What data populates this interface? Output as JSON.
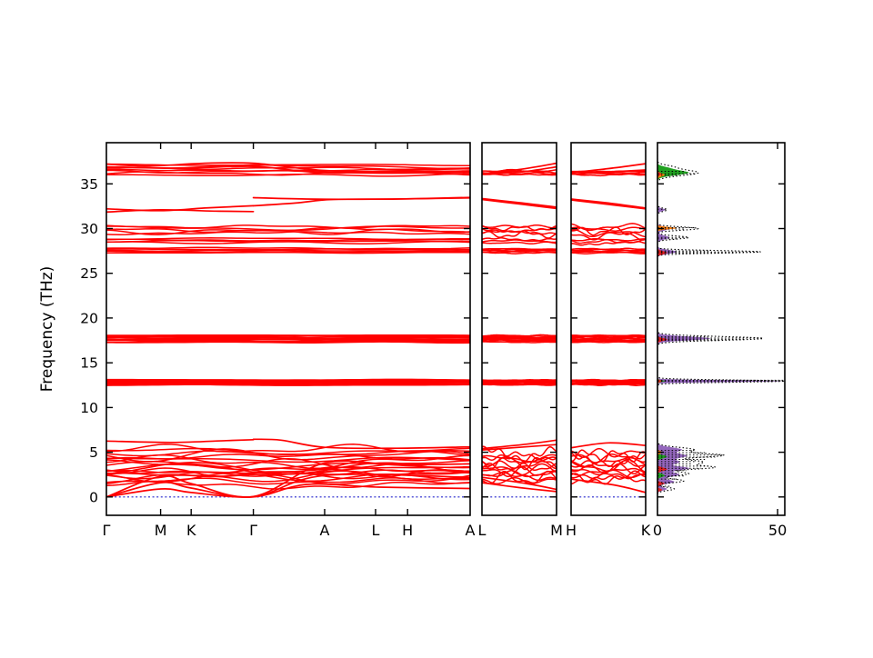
{
  "figure": {
    "ylabel": "Frequency (THz)",
    "ylim": [
      -2.05,
      39.6
    ],
    "yticks": [
      0,
      5,
      10,
      15,
      20,
      25,
      30,
      35
    ],
    "colors": {
      "band": "#ff0000",
      "zero_line": "#2222cc",
      "axis": "#000000",
      "background": "#ffffff"
    }
  },
  "chart_data": {
    "type": "line",
    "title": "",
    "ylabel": "Frequency (THz)",
    "yticks": [
      0,
      5,
      10,
      15,
      20,
      25,
      30,
      35
    ],
    "band_panels": [
      {
        "name": "band-panel-main",
        "kticks": [
          {
            "label": "Γ",
            "t": 0
          },
          {
            "label": "M",
            "t": 0.149
          },
          {
            "label": "K",
            "t": 0.233
          },
          {
            "label": "Γ",
            "t": 0.404
          },
          {
            "label": "A",
            "t": 0.6
          },
          {
            "label": "L",
            "t": 0.74
          },
          {
            "label": "H",
            "t": 0.828
          },
          {
            "label": "A",
            "t": 1
          }
        ],
        "clusters": [
          {
            "y": 36.55,
            "spread": 1.15,
            "n": 7,
            "wiggle": 0.2
          },
          {
            "y": 29.85,
            "spread": 0.75,
            "n": 5,
            "wiggle": 0.25
          },
          {
            "y": 28.65,
            "spread": 0.45,
            "n": 4,
            "wiggle": 0.12
          },
          {
            "y": 27.55,
            "spread": 0.5,
            "n": 5,
            "wiggle": 0.07
          },
          {
            "y": 17.68,
            "spread": 0.8,
            "n": 11,
            "wiggle": 0.06
          },
          {
            "y": 12.8,
            "spread": 0.6,
            "n": 10,
            "wiggle": 0.05
          },
          {
            "y": 3.7,
            "spread": 3.3,
            "n": 15,
            "wiggle": 0.55
          },
          {
            "y": 2.2,
            "spread": 1.8,
            "n": 5,
            "wiggle": 0.45
          }
        ],
        "lines": [
          [
            [
              0,
              0
            ],
            [
              0.149,
              2.3
            ],
            [
              0.233,
              1.5
            ],
            [
              0.404,
              0.05
            ],
            [
              0.6,
              3.8
            ],
            [
              0.8,
              3.6
            ],
            [
              1,
              3.7
            ]
          ],
          [
            [
              0,
              0
            ],
            [
              0.149,
              1.6
            ],
            [
              0.233,
              1.0
            ],
            [
              0.404,
              0.02
            ],
            [
              0.6,
              2.4
            ],
            [
              1,
              2.2
            ]
          ],
          [
            [
              0,
              0
            ],
            [
              0.149,
              0.9
            ],
            [
              0.233,
              0.5
            ],
            [
              0.404,
              0
            ],
            [
              0.55,
              1.4
            ],
            [
              0.75,
              1.1
            ],
            [
              1,
              0.95
            ]
          ],
          [
            [
              0.404,
              6.45
            ],
            [
              0.48,
              6.35
            ],
            [
              0.6,
              5.55
            ],
            [
              0.8,
              5.45
            ],
            [
              1,
              5.6
            ]
          ],
          [
            [
              0,
              6.25
            ],
            [
              0.18,
              6.1
            ],
            [
              0.33,
              6.3
            ],
            [
              0.404,
              6.4
            ]
          ],
          [
            [
              0,
              32.2
            ],
            [
              0.15,
              32.0
            ],
            [
              0.27,
              32.3
            ],
            [
              0.404,
              32.55
            ]
          ],
          [
            [
              0,
              31.85
            ],
            [
              0.15,
              32.1
            ],
            [
              0.3,
              31.95
            ],
            [
              0.404,
              31.9
            ]
          ],
          [
            [
              0.404,
              33.45
            ],
            [
              0.55,
              33.3
            ],
            [
              0.74,
              33.28
            ],
            [
              1,
              33.42
            ]
          ],
          [
            [
              0.404,
              32.55
            ],
            [
              0.52,
              32.85
            ],
            [
              0.62,
              33.25
            ],
            [
              0.8,
              33.3
            ],
            [
              1,
              33.48
            ]
          ],
          [
            [
              0,
              37.2
            ],
            [
              0.12,
              37.0
            ],
            [
              0.27,
              37.3
            ],
            [
              0.404,
              37.3
            ],
            [
              0.52,
              36.8
            ],
            [
              0.62,
              36.45
            ],
            [
              0.8,
              36.35
            ],
            [
              1,
              36.45
            ]
          ],
          [
            [
              0,
              36.9
            ],
            [
              0.2,
              36.75
            ],
            [
              0.404,
              36.95
            ],
            [
              0.55,
              36.4
            ],
            [
              0.75,
              36.2
            ],
            [
              1,
              36.3
            ]
          ]
        ]
      },
      {
        "name": "band-panel-l-m",
        "kticks": [
          {
            "label": "L",
            "t": 0
          },
          {
            "label": "M",
            "t": 1
          }
        ],
        "clusters": [
          {
            "y": 36.25,
            "spread": 0.45,
            "n": 4,
            "wiggle": 0.1
          },
          {
            "y": 29.8,
            "spread": 0.9,
            "n": 5,
            "wiggle": 0.3
          },
          {
            "y": 28.6,
            "spread": 0.4,
            "n": 3,
            "wiggle": 0.15
          },
          {
            "y": 27.5,
            "spread": 0.45,
            "n": 5,
            "wiggle": 0.06
          },
          {
            "y": 17.68,
            "spread": 0.75,
            "n": 9,
            "wiggle": 0.06
          },
          {
            "y": 12.8,
            "spread": 0.55,
            "n": 9,
            "wiggle": 0.05
          },
          {
            "y": 3.3,
            "spread": 3.0,
            "n": 13,
            "wiggle": 0.6
          }
        ],
        "lines": [
          [
            [
              0,
              36.15
            ],
            [
              0.5,
              36.6
            ],
            [
              1,
              37.3
            ]
          ],
          [
            [
              0,
              36.05
            ],
            [
              0.5,
              36.3
            ],
            [
              1,
              36.9
            ]
          ],
          [
            [
              0,
              33.35
            ],
            [
              0.5,
              32.9
            ],
            [
              1,
              32.4
            ]
          ],
          [
            [
              0,
              33.25
            ],
            [
              0.5,
              32.75
            ],
            [
              1,
              32.25
            ]
          ],
          [
            [
              0,
              5.4
            ],
            [
              0.6,
              5.9
            ],
            [
              1,
              6.35
            ]
          ],
          [
            [
              0,
              5.25
            ],
            [
              1,
              5.85
            ]
          ],
          [
            [
              0,
              1.6
            ],
            [
              0.5,
              1.05
            ],
            [
              1,
              0.6
            ]
          ],
          [
            [
              0,
              2.2
            ],
            [
              0.6,
              1.5
            ],
            [
              1,
              0.85
            ]
          ]
        ]
      },
      {
        "name": "band-panel-h-k",
        "kticks": [
          {
            "label": "H",
            "t": 0
          },
          {
            "label": "K",
            "t": 1
          }
        ],
        "clusters": [
          {
            "y": 36.2,
            "spread": 0.4,
            "n": 4,
            "wiggle": 0.08
          },
          {
            "y": 29.7,
            "spread": 0.95,
            "n": 5,
            "wiggle": 0.35
          },
          {
            "y": 28.55,
            "spread": 0.4,
            "n": 3,
            "wiggle": 0.15
          },
          {
            "y": 27.5,
            "spread": 0.45,
            "n": 5,
            "wiggle": 0.06
          },
          {
            "y": 17.68,
            "spread": 0.75,
            "n": 9,
            "wiggle": 0.06
          },
          {
            "y": 12.8,
            "spread": 0.55,
            "n": 9,
            "wiggle": 0.05
          },
          {
            "y": 3.4,
            "spread": 3.0,
            "n": 13,
            "wiggle": 0.6
          }
        ],
        "lines": [
          [
            [
              0,
              36.25
            ],
            [
              0.5,
              36.7
            ],
            [
              1,
              37.25
            ]
          ],
          [
            [
              0,
              36.1
            ],
            [
              1,
              36.55
            ]
          ],
          [
            [
              0,
              33.3
            ],
            [
              0.5,
              32.85
            ],
            [
              1,
              32.3
            ]
          ],
          [
            [
              0,
              33.2
            ],
            [
              0.6,
              32.6
            ],
            [
              1,
              32.2
            ]
          ],
          [
            [
              0,
              5.5
            ],
            [
              0.5,
              6.05
            ],
            [
              1,
              5.75
            ]
          ],
          [
            [
              0,
              2.0
            ],
            [
              0.6,
              1.3
            ],
            [
              1,
              0.5
            ]
          ]
        ]
      }
    ],
    "dos_panel": {
      "name": "dos-panel",
      "xlim": [
        0,
        53
      ],
      "xticks": [
        {
          "label": "0",
          "v": 0
        },
        {
          "label": "50",
          "v": 50
        }
      ],
      "series": [
        {
          "name": "dos-purple",
          "color": "#9467bd",
          "peaks": [
            [
              36.2,
              2,
              0.3
            ],
            [
              32.1,
              3.2,
              0.22
            ],
            [
              30.0,
              5,
              0.3
            ],
            [
              29.0,
              5,
              0.3
            ],
            [
              27.4,
              8,
              0.3
            ],
            [
              17.72,
              22,
              0.3
            ],
            [
              12.95,
              52,
              0.14
            ],
            [
              5.3,
              10,
              0.35
            ],
            [
              4.6,
              12,
              0.35
            ],
            [
              3.9,
              9,
              0.35
            ],
            [
              3.2,
              13,
              0.3
            ],
            [
              2.5,
              9,
              0.35
            ],
            [
              1.7,
              7,
              0.3
            ],
            [
              0.9,
              4,
              0.25
            ]
          ]
        },
        {
          "name": "dos-green",
          "color": "#21a121",
          "peaks": [
            [
              36.25,
              13,
              0.4
            ],
            [
              36.8,
              3,
              0.25
            ],
            [
              12.95,
              3,
              0.15
            ],
            [
              4.5,
              4,
              0.25
            ],
            [
              2.4,
              3,
              0.25
            ]
          ]
        },
        {
          "name": "dos-orange",
          "color": "#ff7f0e",
          "peaks": [
            [
              36.0,
              3,
              0.25
            ],
            [
              30.05,
              8,
              0.18
            ],
            [
              12.95,
              2,
              0.15
            ],
            [
              5.0,
              2,
              0.2
            ]
          ]
        },
        {
          "name": "dos-red",
          "color": "#e02020",
          "peaks": [
            [
              36.1,
              1.5,
              0.2
            ],
            [
              27.3,
              4,
              0.25
            ],
            [
              17.6,
              4,
              0.22
            ],
            [
              12.95,
              2,
              0.12
            ],
            [
              3.1,
              4,
              0.25
            ],
            [
              1.5,
              3,
              0.2
            ],
            [
              0.8,
              2,
              0.18
            ]
          ]
        }
      ],
      "total": {
        "name": "dos-total",
        "color": "#000000",
        "peaks": [
          [
            36.25,
            17,
            0.45
          ],
          [
            36.9,
            5,
            0.3
          ],
          [
            32.1,
            4,
            0.25
          ],
          [
            30.0,
            17,
            0.25
          ],
          [
            29.0,
            13,
            0.25
          ],
          [
            27.4,
            43,
            0.2
          ],
          [
            17.72,
            44,
            0.3
          ],
          [
            12.95,
            53,
            0.18
          ],
          [
            5.3,
            15,
            0.35
          ],
          [
            4.65,
            27,
            0.3
          ],
          [
            3.9,
            19,
            0.35
          ],
          [
            3.3,
            23,
            0.28
          ],
          [
            2.6,
            13,
            0.3
          ],
          [
            1.8,
            11,
            0.28
          ],
          [
            0.9,
            7,
            0.25
          ]
        ]
      },
      "dotted_rows": [
        [
          36.4,
          11
        ],
        [
          36.15,
          16
        ],
        [
          35.95,
          9
        ],
        [
          32.15,
          4
        ],
        [
          30.1,
          16
        ],
        [
          29.95,
          11
        ],
        [
          29.0,
          12
        ],
        [
          28.85,
          8
        ],
        [
          27.5,
          22
        ],
        [
          27.38,
          43
        ],
        [
          27.27,
          32
        ],
        [
          17.9,
          21
        ],
        [
          17.76,
          44
        ],
        [
          17.62,
          36
        ],
        [
          17.5,
          26
        ],
        [
          13.05,
          53
        ],
        [
          12.92,
          48
        ],
        [
          5.2,
          16
        ],
        [
          4.95,
          20
        ],
        [
          4.7,
          27
        ],
        [
          4.45,
          24
        ],
        [
          4.2,
          20
        ],
        [
          3.95,
          16
        ],
        [
          3.7,
          14
        ],
        [
          3.45,
          22
        ],
        [
          3.2,
          18
        ],
        [
          2.95,
          12
        ],
        [
          2.65,
          9
        ],
        [
          2.35,
          11
        ],
        [
          2.0,
          8
        ],
        [
          1.65,
          6
        ],
        [
          1.2,
          5
        ]
      ]
    }
  }
}
